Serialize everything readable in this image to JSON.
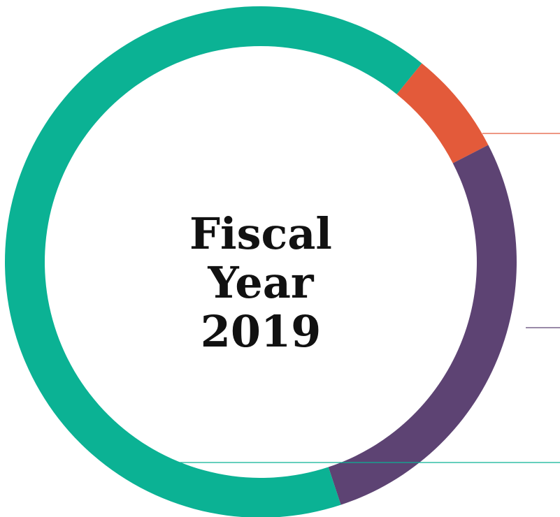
{
  "chart_data": {
    "type": "pie",
    "variant": "donut",
    "center_label": [
      "Fiscal",
      "Year",
      "2019"
    ],
    "slices": [
      {
        "value": 6.6,
        "color": "#E35A3A"
      },
      {
        "value": 27.5,
        "color": "#5D4373"
      },
      {
        "value": 65.9,
        "color": "#0BB294"
      }
    ],
    "legend": "none"
  }
}
